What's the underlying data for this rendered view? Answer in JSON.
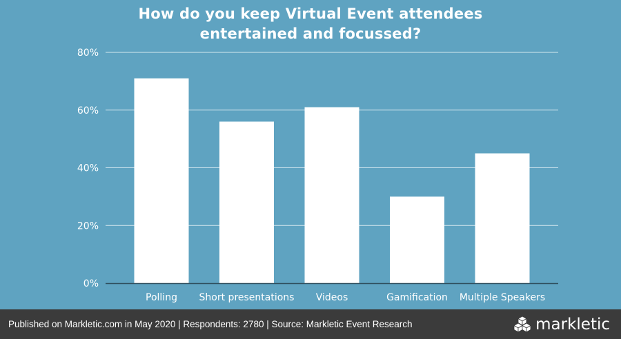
{
  "chart_data": {
    "type": "bar",
    "title_line1": "How do you keep Virtual Event attendees",
    "title_line2": "entertained and focussed?",
    "categories": [
      "Polling",
      "Short presentations",
      "Videos",
      "Gamification",
      "Multiple Speakers"
    ],
    "values": [
      71,
      56,
      61,
      30,
      45
    ],
    "ylim": [
      0,
      80
    ],
    "yticks": [
      0,
      20,
      40,
      60,
      80
    ],
    "ytick_labels": [
      "0%",
      "20%",
      "40%",
      "60%",
      "80%"
    ],
    "grid": true,
    "bar_color": "#ffffff",
    "background_color": "#5fa3c1"
  },
  "footer": {
    "text": "Published on Markletic.com in May 2020 | Respondents: 2780 | Source: Markletic Event Research",
    "brand": "markletic",
    "logo_icon": "cubes-logo-icon"
  }
}
